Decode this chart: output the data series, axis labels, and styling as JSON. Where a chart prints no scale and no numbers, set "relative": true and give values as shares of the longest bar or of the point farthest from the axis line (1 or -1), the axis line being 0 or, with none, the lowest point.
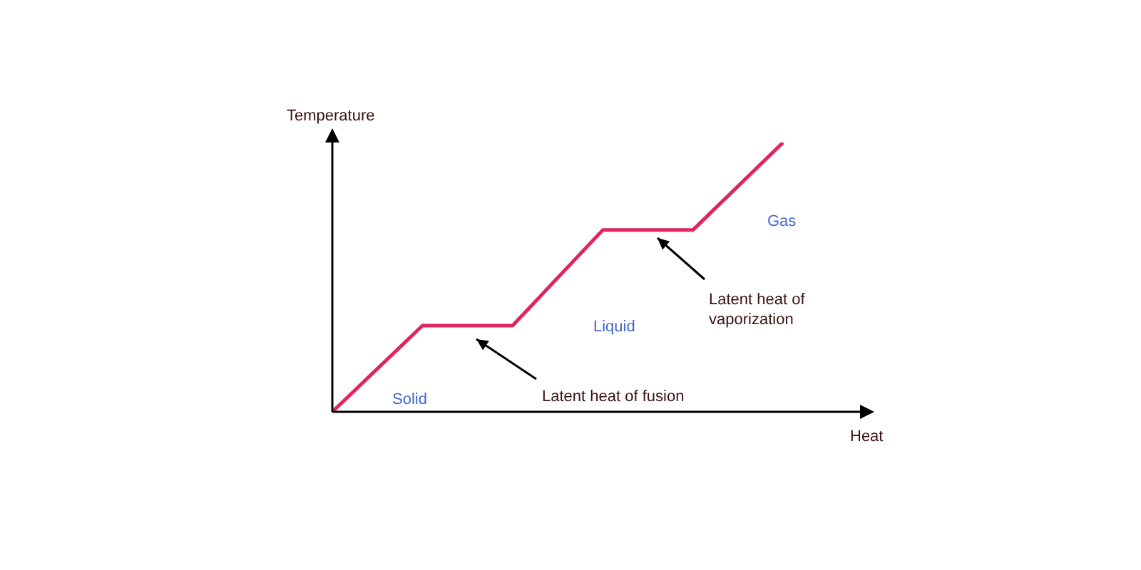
{
  "chart_data": {
    "type": "line",
    "relative": true,
    "xlabel": "Heat",
    "ylabel": "Temperature",
    "categories": [
      null,
      null,
      null,
      null,
      null,
      null
    ],
    "series": [
      {
        "color": "#e0245e",
        "values": [
          0,
          0.32,
          0.32,
          0.675,
          0.675,
          1
        ]
      }
    ],
    "marker": "none",
    "line_style": "solid",
    "grid": false,
    "legend": false,
    "annotations": [
      "Solid",
      "Liquid",
      "Gas",
      "Latent heat of fusion",
      "Latent heat of vaporization"
    ]
  }
}
